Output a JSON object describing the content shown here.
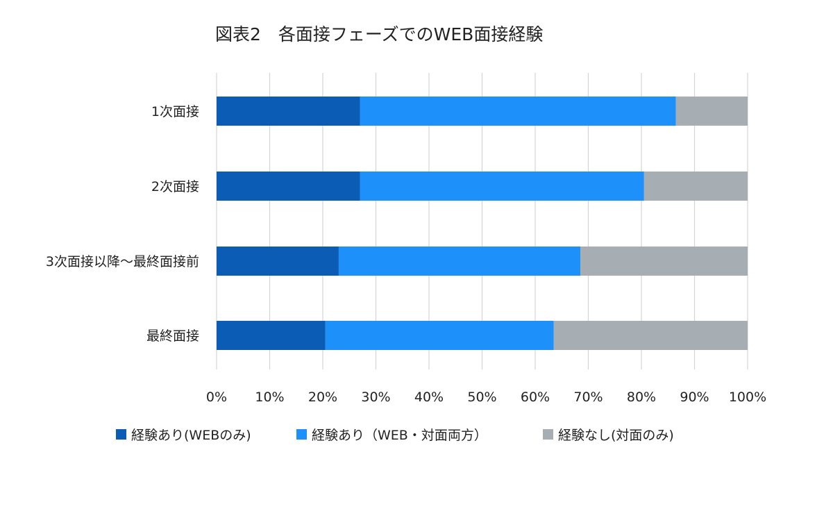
{
  "chart_data": {
    "type": "bar",
    "orientation": "horizontal",
    "stacked": true,
    "title": "図表2　各面接フェーズでのWEB面接経験",
    "categories": [
      "1次面接",
      "2次面接",
      "3次面接以降～最終面接前",
      "最終面接"
    ],
    "series": [
      {
        "name": "経験あり(WEBのみ)",
        "color": "#0a5cb5",
        "values": [
          27,
          27,
          23,
          20.5
        ]
      },
      {
        "name": "経験あり（WEB・対面両方）",
        "color": "#1e90fa",
        "values": [
          59.5,
          53.5,
          45.5,
          43
        ]
      },
      {
        "name": "経験なし(対面のみ)",
        "color": "#a6adb3",
        "values": [
          13.5,
          19.5,
          31.5,
          36.5
        ]
      }
    ],
    "xlim": [
      0,
      100
    ],
    "x_ticks": [
      "0%",
      "10%",
      "20%",
      "30%",
      "40%",
      "50%",
      "60%",
      "70%",
      "80%",
      "90%",
      "100%"
    ],
    "grid": "vertical",
    "legend_position": "bottom"
  }
}
